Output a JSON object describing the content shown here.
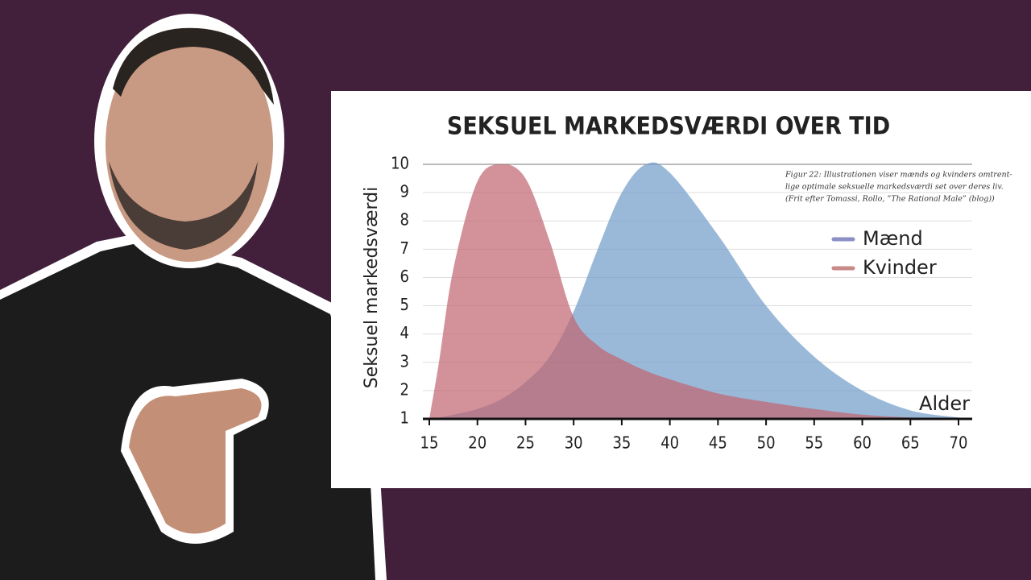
{
  "chart_data": {
    "type": "area",
    "title": "SEKSUEL MARKEDSVÆRDI OVER TID",
    "y_label": "Seksuel markedsværdi",
    "x_label": "Alder",
    "annotation": [
      "Figur 22: Illustrationen viser mænds og kvinders omtrent-",
      "lige optimale seksuelle markedsværdi set over deres liv.",
      "(Frit efter Tomassi, Rollo, ”The Rational Male” (blog))"
    ],
    "x": [
      15,
      16,
      17.5,
      20,
      22.5,
      25,
      27.5,
      30,
      32.5,
      35,
      37.5,
      40,
      45,
      50,
      55,
      60,
      65,
      70
    ],
    "series": [
      {
        "name": "Mænd",
        "color": "#6f9bc9",
        "legend_color": "#8b8fc4",
        "values": [
          1,
          1.05,
          1.15,
          1.35,
          1.7,
          2.3,
          3.2,
          4.8,
          7,
          9,
          10,
          9.7,
          7.5,
          5.0,
          3.2,
          2.0,
          1.3,
          1.05
        ]
      },
      {
        "name": "Kvinder",
        "color": "#c0646e",
        "legend_color": "#c98a8a",
        "values": [
          1,
          3,
          6.3,
          9.4,
          10,
          9.5,
          7.3,
          4.6,
          3.6,
          3.1,
          2.7,
          2.4,
          1.9,
          1.6,
          1.35,
          1.15,
          1.05,
          1
        ]
      }
    ],
    "xlim": [
      15,
      70
    ],
    "xticks": [
      15,
      20,
      25,
      30,
      35,
      40,
      45,
      50,
      55,
      60,
      65,
      70
    ],
    "ylim": [
      1,
      10
    ],
    "yticks": [
      1,
      2,
      3,
      4,
      5,
      6,
      7,
      8,
      9,
      10
    ],
    "grid": true
  }
}
